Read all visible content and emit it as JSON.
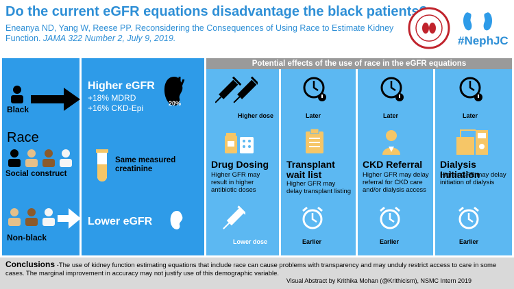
{
  "title": "Do the current eGFR equations disadvantage the black patients?",
  "citation": {
    "authors": "Eneanya ND, Yang W, Reese PP. Reconsidering the Consequences of Using Race to Estimate Kidney Function.",
    "journal": "JAMA 322 Number 2, July 9, 2019."
  },
  "logo": {
    "hashtag": "#NephJC",
    "seal_text": "NEPHROLOGY SOCIAL MEDIA COLLECTIVE"
  },
  "left": {
    "black": "Black",
    "race": "Race",
    "social_construct": "Social construct",
    "non_black": "Non-black"
  },
  "middle": {
    "higher_egfr": "Higher eGFR",
    "mdrd": "+18% MDRD",
    "ckdepi": "+16% CKD-Epi",
    "percent_badge": "20%",
    "same_creatinine": "Same measured creatinine",
    "lower_egfr": "Lower eGFR"
  },
  "effects_header": "Potential effects of the use of race in the eGFR equations",
  "columns": [
    {
      "top": "Higher dose",
      "title": "Drug Dosing",
      "desc": "Higher GFR may result in higher antibiotic doses",
      "bottom": "Lower dose"
    },
    {
      "top": "Later",
      "title": "Transplant wait list",
      "desc": "Higher GFR may delay transplant listing",
      "bottom": "Earlier"
    },
    {
      "top": "Later",
      "title": "CKD Referral",
      "desc": "Higher GFR may delay referral for CKD care and/or dialysis access",
      "bottom": "Earlier"
    },
    {
      "top": "Later",
      "title": "Dialysis Initiation",
      "desc": "Higher GFR may delay initiation of dialysis",
      "bottom": "Earlier"
    }
  ],
  "conclusions": {
    "label": "Conclusions",
    "text": " -The use of kidney function estimating equations that include race can cause problems with transparency and may unduly restrict access to care in some cases. The marginal improvement in accuracy may not justify use of this demographic variable.",
    "credit": "Visual Abstract by Krithika Mohan (@Krithicism), NSMC Intern 2019"
  },
  "colors": {
    "panel": "#2e9be8",
    "panel_light": "#5cb8f2",
    "header": "#9a9a9a",
    "title": "#2e8fd6"
  }
}
